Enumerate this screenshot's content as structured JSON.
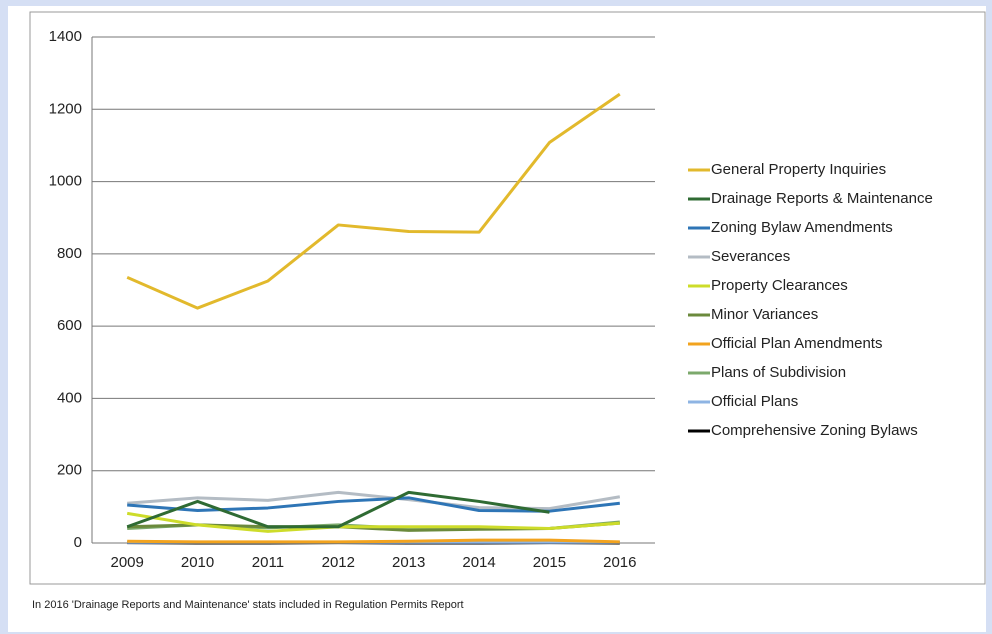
{
  "chart_data": {
    "type": "line",
    "categories": [
      "2009",
      "2010",
      "2011",
      "2012",
      "2013",
      "2014",
      "2015",
      "2016"
    ],
    "series": [
      {
        "name": "General Property Inquiries",
        "color": "#e2b92c",
        "values": [
          735,
          650,
          725,
          880,
          862,
          860,
          1108,
          1242
        ]
      },
      {
        "name": "Drainage Reports & Maintenance",
        "color": "#2f6b33",
        "values": [
          45,
          115,
          45,
          45,
          140,
          115,
          85,
          null
        ]
      },
      {
        "name": "Zoning Bylaw Amendments",
        "color": "#2e75b6",
        "values": [
          105,
          90,
          97,
          115,
          125,
          90,
          88,
          110
        ]
      },
      {
        "name": "Severances",
        "color": "#b4bcc4",
        "values": [
          110,
          125,
          118,
          140,
          120,
          98,
          95,
          128
        ]
      },
      {
        "name": "Property Clearances",
        "color": "#cddc2a",
        "values": [
          82,
          50,
          32,
          45,
          45,
          45,
          40,
          55
        ]
      },
      {
        "name": "Minor Variances",
        "color": "#6b8a3c",
        "values": [
          45,
          50,
          45,
          45,
          35,
          38,
          40,
          55
        ]
      },
      {
        "name": "Official Plan Amendments",
        "color": "#f2a31e",
        "values": [
          5,
          3,
          3,
          3,
          5,
          8,
          8,
          3
        ]
      },
      {
        "name": "Plans of Subdivision",
        "color": "#7ca96c",
        "values": [
          40,
          50,
          42,
          50,
          40,
          40,
          40,
          58
        ]
      },
      {
        "name": "Official Plans",
        "color": "#8eb4e3",
        "values": [
          2,
          2,
          2,
          2,
          2,
          2,
          2,
          2
        ]
      },
      {
        "name": "Comprehensive Zoning Bylaws",
        "color": "#000000",
        "values": [
          1,
          0,
          0,
          1,
          0,
          0,
          1,
          0
        ]
      }
    ],
    "ylim": [
      0,
      1400
    ],
    "yticks": [
      0,
      200,
      400,
      600,
      800,
      1000,
      1200,
      1400
    ],
    "grid": true,
    "legend": "right",
    "note": "In 2016 'Drainage Reports and Maintenance' stats included in Regulation Permits Report"
  }
}
